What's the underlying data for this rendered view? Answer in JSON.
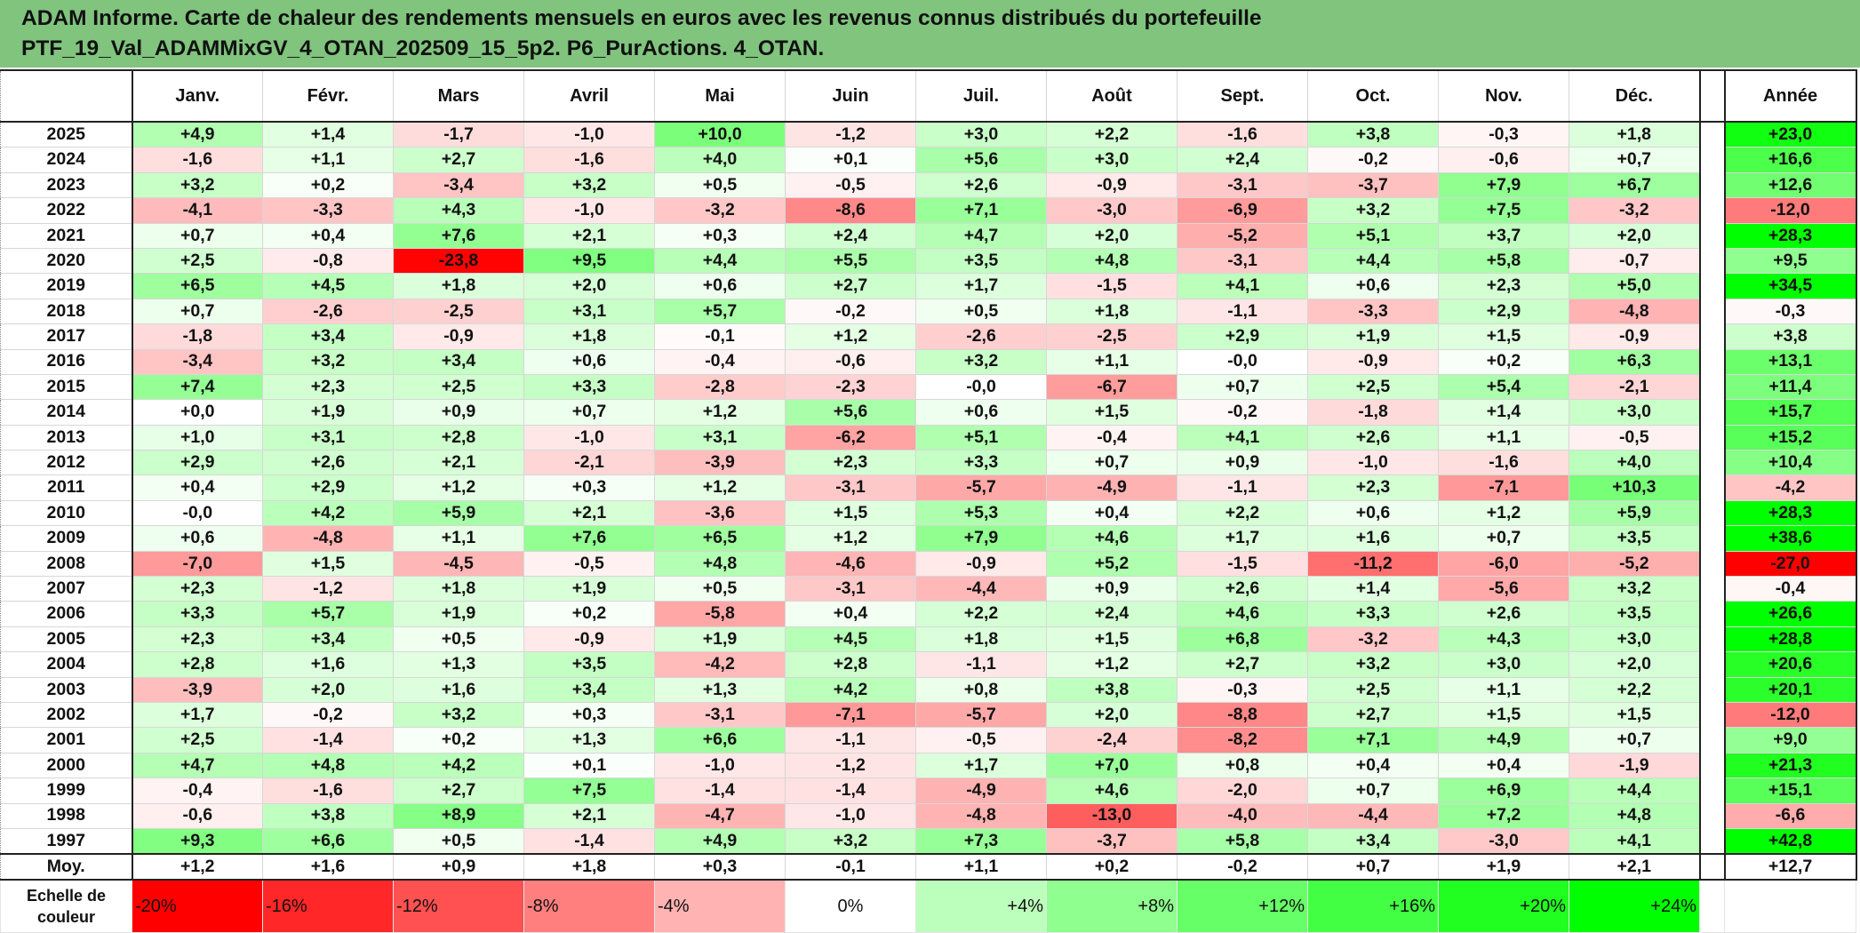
{
  "title": {
    "line1": "ADAM Informe. Carte de chaleur des rendements mensuels en euros avec les revenus connus distribués du portefeuille",
    "line2": "PTF_19_Val_ADAMMixGV_4_OTAN_202509_15_5p2. P6_PurActions. 4_OTAN."
  },
  "colors": {
    "title_bg": "#80c47e",
    "neg_max": "#ff0000",
    "pos_max": "#00ff00",
    "neutral": "#ffffff"
  },
  "chart_data": {
    "type": "heatmap",
    "title": "Carte de chaleur des rendements mensuels en euros",
    "months": [
      "Janv.",
      "Févr.",
      "Mars",
      "Avril",
      "Mai",
      "Juin",
      "Juil.",
      "Août",
      "Sept.",
      "Oct.",
      "Nov.",
      "Déc."
    ],
    "annual_header": "Année",
    "avg_label": "Moy.",
    "rows": [
      {
        "year": "2025",
        "m": [
          "+4,9",
          "+1,4",
          "-1,7",
          "-1,0",
          "+10,0",
          "-1,2",
          "+3,0",
          "+2,2",
          "-1,6",
          "+3,8",
          "-0,3",
          "+1,8"
        ],
        "annual": "+23,0"
      },
      {
        "year": "2024",
        "m": [
          "-1,6",
          "+1,1",
          "+2,7",
          "-1,6",
          "+4,0",
          "+0,1",
          "+5,6",
          "+3,0",
          "+2,4",
          "-0,2",
          "-0,6",
          "+0,7"
        ],
        "annual": "+16,6"
      },
      {
        "year": "2023",
        "m": [
          "+3,2",
          "+0,2",
          "-3,4",
          "+3,2",
          "+0,5",
          "-0,5",
          "+2,6",
          "-0,9",
          "-3,1",
          "-3,7",
          "+7,9",
          "+6,7"
        ],
        "annual": "+12,6"
      },
      {
        "year": "2022",
        "m": [
          "-4,1",
          "-3,3",
          "+4,3",
          "-1,0",
          "-3,2",
          "-8,6",
          "+7,1",
          "-3,0",
          "-6,9",
          "+3,2",
          "+7,5",
          "-3,2"
        ],
        "annual": "-12,0"
      },
      {
        "year": "2021",
        "m": [
          "+0,7",
          "+0,4",
          "+7,6",
          "+2,1",
          "+0,3",
          "+2,4",
          "+4,7",
          "+2,0",
          "-5,2",
          "+5,1",
          "+3,7",
          "+2,0"
        ],
        "annual": "+28,3"
      },
      {
        "year": "2020",
        "m": [
          "+2,5",
          "-0,8",
          "-23,8",
          "+9,5",
          "+4,4",
          "+5,5",
          "+3,5",
          "+4,8",
          "-3,1",
          "+4,4",
          "+5,8",
          "-0,7"
        ],
        "annual": "+9,5"
      },
      {
        "year": "2019",
        "m": [
          "+6,5",
          "+4,5",
          "+1,8",
          "+2,0",
          "+0,6",
          "+2,7",
          "+1,7",
          "-1,5",
          "+4,1",
          "+0,6",
          "+2,3",
          "+5,0"
        ],
        "annual": "+34,5"
      },
      {
        "year": "2018",
        "m": [
          "+0,7",
          "-2,6",
          "-2,5",
          "+3,1",
          "+5,7",
          "-0,2",
          "+0,5",
          "+1,8",
          "-1,1",
          "-3,3",
          "+2,9",
          "-4,8"
        ],
        "annual": "-0,3"
      },
      {
        "year": "2017",
        "m": [
          "-1,8",
          "+3,4",
          "-0,9",
          "+1,8",
          "-0,1",
          "+1,2",
          "-2,6",
          "-2,5",
          "+2,9",
          "+1,9",
          "+1,5",
          "-0,9"
        ],
        "annual": "+3,8"
      },
      {
        "year": "2016",
        "m": [
          "-3,4",
          "+3,2",
          "+3,4",
          "+0,6",
          "-0,4",
          "-0,6",
          "+3,2",
          "+1,1",
          "-0,0",
          "-0,9",
          "+0,2",
          "+6,3"
        ],
        "annual": "+13,1"
      },
      {
        "year": "2015",
        "m": [
          "+7,4",
          "+2,3",
          "+2,5",
          "+3,3",
          "-2,8",
          "-2,3",
          "-0,0",
          "-6,7",
          "+0,7",
          "+2,5",
          "+5,4",
          "-2,1"
        ],
        "annual": "+11,4"
      },
      {
        "year": "2014",
        "m": [
          "+0,0",
          "+1,9",
          "+0,9",
          "+0,7",
          "+1,2",
          "+5,6",
          "+0,6",
          "+1,5",
          "-0,2",
          "-1,8",
          "+1,4",
          "+3,0"
        ],
        "annual": "+15,7"
      },
      {
        "year": "2013",
        "m": [
          "+1,0",
          "+3,1",
          "+2,8",
          "-1,0",
          "+3,1",
          "-6,2",
          "+5,1",
          "-0,4",
          "+4,1",
          "+2,6",
          "+1,1",
          "-0,5"
        ],
        "annual": "+15,2"
      },
      {
        "year": "2012",
        "m": [
          "+2,9",
          "+2,6",
          "+2,1",
          "-2,1",
          "-3,9",
          "+2,3",
          "+3,3",
          "+0,7",
          "+0,9",
          "-1,0",
          "-1,6",
          "+4,0"
        ],
        "annual": "+10,4"
      },
      {
        "year": "2011",
        "m": [
          "+0,4",
          "+2,9",
          "+1,2",
          "+0,3",
          "+1,2",
          "-3,1",
          "-5,7",
          "-4,9",
          "-1,1",
          "+2,3",
          "-7,1",
          "+10,3"
        ],
        "annual": "-4,2"
      },
      {
        "year": "2010",
        "m": [
          "-0,0",
          "+4,2",
          "+5,9",
          "+2,1",
          "-3,6",
          "+1,5",
          "+5,3",
          "+0,4",
          "+2,2",
          "+0,6",
          "+1,2",
          "+5,9"
        ],
        "annual": "+28,3"
      },
      {
        "year": "2009",
        "m": [
          "+0,6",
          "-4,8",
          "+1,1",
          "+7,6",
          "+6,5",
          "+1,2",
          "+7,9",
          "+4,6",
          "+1,7",
          "+1,6",
          "+0,7",
          "+3,5"
        ],
        "annual": "+38,6"
      },
      {
        "year": "2008",
        "m": [
          "-7,0",
          "+1,5",
          "-4,5",
          "-0,5",
          "+4,8",
          "-4,6",
          "-0,9",
          "+5,2",
          "-1,5",
          "-11,2",
          "-6,0",
          "-5,2"
        ],
        "annual": "-27,0"
      },
      {
        "year": "2007",
        "m": [
          "+2,3",
          "-1,2",
          "+1,8",
          "+1,9",
          "+0,5",
          "-3,1",
          "-4,4",
          "+0,9",
          "+2,6",
          "+1,4",
          "-5,6",
          "+3,2"
        ],
        "annual": "-0,4"
      },
      {
        "year": "2006",
        "m": [
          "+3,3",
          "+5,7",
          "+1,9",
          "+0,2",
          "-5,8",
          "+0,4",
          "+2,2",
          "+2,4",
          "+4,6",
          "+3,3",
          "+2,6",
          "+3,5"
        ],
        "annual": "+26,6"
      },
      {
        "year": "2005",
        "m": [
          "+2,3",
          "+3,4",
          "+0,5",
          "-0,9",
          "+1,9",
          "+4,5",
          "+1,8",
          "+1,5",
          "+6,8",
          "-3,2",
          "+4,3",
          "+3,0"
        ],
        "annual": "+28,8"
      },
      {
        "year": "2004",
        "m": [
          "+2,8",
          "+1,6",
          "+1,3",
          "+3,5",
          "-4,2",
          "+2,8",
          "-1,1",
          "+1,2",
          "+2,7",
          "+3,2",
          "+3,0",
          "+2,0"
        ],
        "annual": "+20,6"
      },
      {
        "year": "2003",
        "m": [
          "-3,9",
          "+2,0",
          "+1,6",
          "+3,4",
          "+1,3",
          "+4,2",
          "+0,8",
          "+3,8",
          "-0,3",
          "+2,5",
          "+1,1",
          "+2,2"
        ],
        "annual": "+20,1"
      },
      {
        "year": "2002",
        "m": [
          "+1,7",
          "-0,2",
          "+3,2",
          "+0,3",
          "-3,1",
          "-7,1",
          "-5,7",
          "+2,0",
          "-8,8",
          "+2,7",
          "+1,5",
          "+1,5"
        ],
        "annual": "-12,0"
      },
      {
        "year": "2001",
        "m": [
          "+2,5",
          "-1,4",
          "+0,2",
          "+1,3",
          "+6,6",
          "-1,1",
          "-0,5",
          "-2,4",
          "-8,2",
          "+7,1",
          "+4,9",
          "+0,7"
        ],
        "annual": "+9,0"
      },
      {
        "year": "2000",
        "m": [
          "+4,7",
          "+4,8",
          "+4,2",
          "+0,1",
          "-1,0",
          "-1,2",
          "+1,7",
          "+7,0",
          "+0,8",
          "+0,4",
          "+0,4",
          "-1,9"
        ],
        "annual": "+21,3"
      },
      {
        "year": "1999",
        "m": [
          "-0,4",
          "-1,6",
          "+2,7",
          "+7,5",
          "-1,4",
          "-1,4",
          "-4,9",
          "+4,6",
          "-2,0",
          "+0,7",
          "+6,9",
          "+4,4"
        ],
        "annual": "+15,1"
      },
      {
        "year": "1998",
        "m": [
          "-0,6",
          "+3,8",
          "+8,9",
          "+2,1",
          "-4,7",
          "-1,0",
          "-4,8",
          "-13,0",
          "-4,0",
          "-4,4",
          "+7,2",
          "+4,8"
        ],
        "annual": "-6,6"
      },
      {
        "year": "1997",
        "m": [
          "+9,3",
          "+6,6",
          "+0,5",
          "-1,4",
          "+4,9",
          "+3,2",
          "+7,3",
          "-3,7",
          "+5,8",
          "+3,4",
          "-3,0",
          "+4,1"
        ],
        "annual": "+42,8"
      }
    ],
    "average": {
      "m": [
        "+1,2",
        "+1,6",
        "+0,9",
        "+1,8",
        "+0,3",
        "-0,1",
        "+1,1",
        "+0,2",
        "-0,2",
        "+0,7",
        "+1,9",
        "+2,1"
      ],
      "annual": "+12,7"
    },
    "color_scale": {
      "label": "Echelle de couleur",
      "stops": [
        "-20%",
        "-16%",
        "-12%",
        "-8%",
        "-4%",
        "0%",
        "+4%",
        "+8%",
        "+12%",
        "+16%",
        "+20%",
        "+24%"
      ]
    }
  }
}
